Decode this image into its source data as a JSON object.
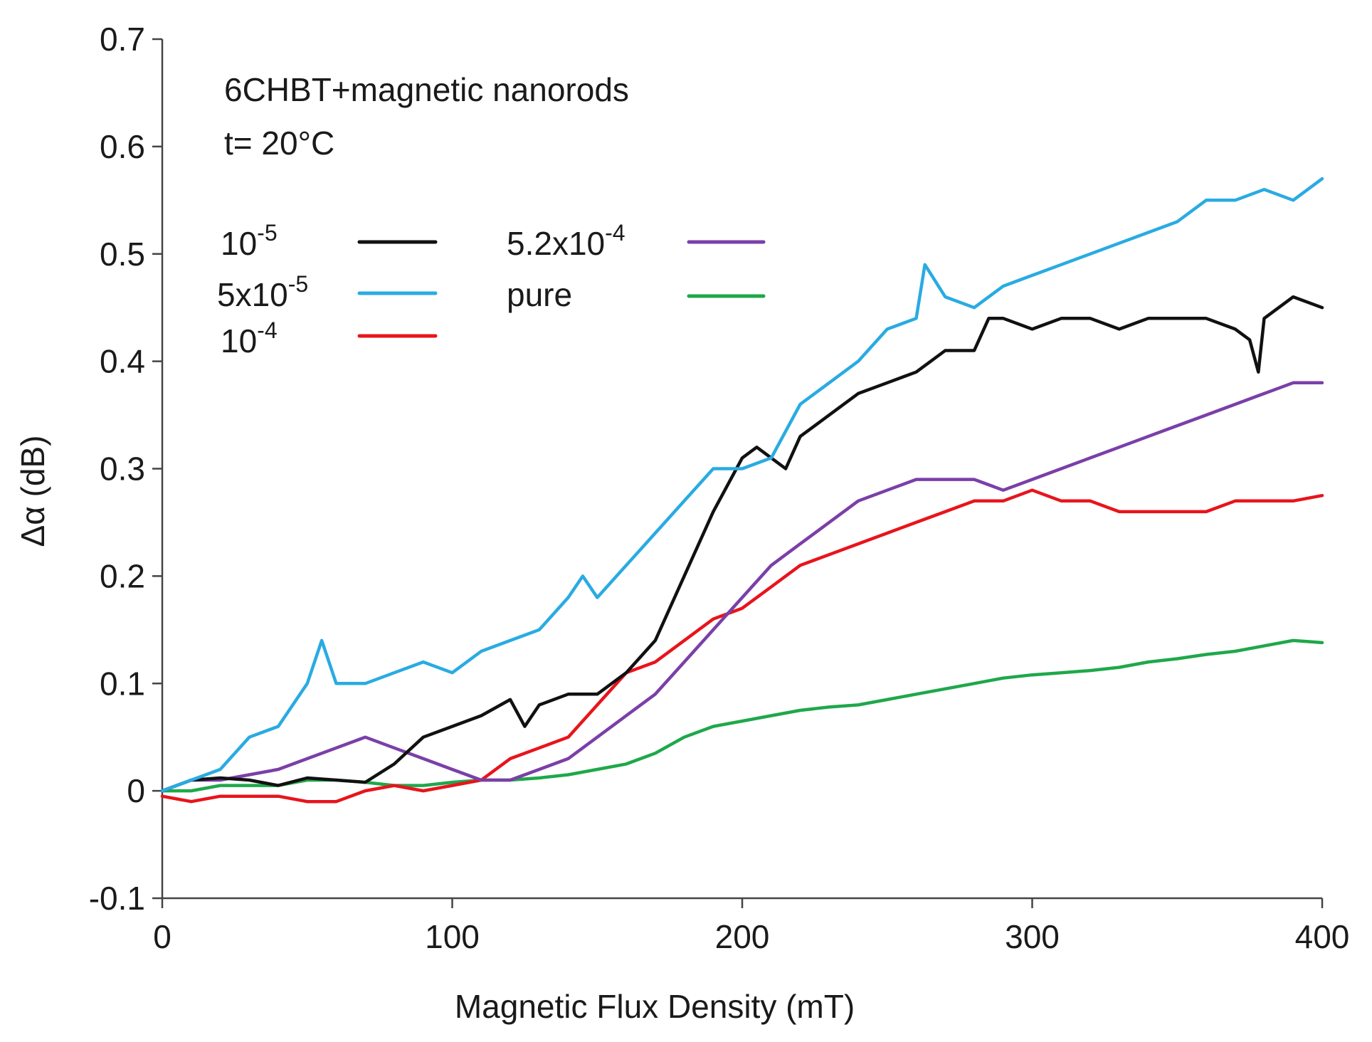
{
  "chart_data": {
    "type": "line",
    "title": "",
    "annotation": [
      "6CHBT+magnetic nanorods",
      "t= 20°C"
    ],
    "xlabel": "Magnetic Flux Density (mT)",
    "ylabel": "Δα (dB)",
    "xlim": [
      0,
      400
    ],
    "ylim": [
      -0.1,
      0.7
    ],
    "xticks": [
      0,
      100,
      200,
      300,
      400
    ],
    "xtick_labels": [
      "0",
      "100",
      "200",
      "300",
      "400"
    ],
    "yticks": [
      -0.1,
      0,
      0.1,
      0.2,
      0.3,
      0.4,
      0.5,
      0.6,
      0.7
    ],
    "ytick_labels": [
      "-0.1",
      "0",
      "0.1",
      "0.2",
      "0.3",
      "0.4",
      "0.5",
      "0.6",
      "0.7"
    ],
    "grid": false,
    "legend_position": "top-left",
    "series": [
      {
        "name": "10-5",
        "label_base": "10",
        "label_exp": "-5",
        "color": "#111111",
        "x": [
          0,
          10,
          20,
          30,
          40,
          50,
          60,
          70,
          80,
          90,
          100,
          110,
          120,
          125,
          130,
          140,
          150,
          160,
          170,
          180,
          190,
          200,
          205,
          210,
          215,
          220,
          230,
          240,
          250,
          260,
          270,
          280,
          285,
          290,
          300,
          310,
          320,
          330,
          340,
          350,
          360,
          370,
          375,
          378,
          380,
          385,
          390,
          400
        ],
        "y": [
          0.0,
          0.01,
          0.012,
          0.01,
          0.005,
          0.012,
          0.01,
          0.008,
          0.025,
          0.05,
          0.06,
          0.07,
          0.085,
          0.06,
          0.08,
          0.09,
          0.09,
          0.11,
          0.14,
          0.2,
          0.26,
          0.31,
          0.32,
          0.31,
          0.3,
          0.33,
          0.35,
          0.37,
          0.38,
          0.39,
          0.41,
          0.41,
          0.44,
          0.44,
          0.43,
          0.44,
          0.44,
          0.43,
          0.44,
          0.44,
          0.44,
          0.43,
          0.42,
          0.39,
          0.44,
          0.45,
          0.46,
          0.45
        ]
      },
      {
        "name": "5x10-5",
        "label_base": "5x10",
        "label_exp": "-5",
        "color": "#29abe2",
        "x": [
          0,
          10,
          20,
          30,
          40,
          50,
          55,
          60,
          70,
          80,
          90,
          100,
          110,
          120,
          130,
          140,
          145,
          150,
          160,
          170,
          180,
          190,
          200,
          210,
          220,
          230,
          240,
          250,
          260,
          263,
          270,
          280,
          290,
          300,
          310,
          320,
          330,
          340,
          350,
          360,
          370,
          380,
          390,
          400
        ],
        "y": [
          0.0,
          0.01,
          0.02,
          0.05,
          0.06,
          0.1,
          0.14,
          0.1,
          0.1,
          0.11,
          0.12,
          0.11,
          0.13,
          0.14,
          0.15,
          0.18,
          0.2,
          0.18,
          0.21,
          0.24,
          0.27,
          0.3,
          0.3,
          0.31,
          0.36,
          0.38,
          0.4,
          0.43,
          0.44,
          0.49,
          0.46,
          0.45,
          0.47,
          0.48,
          0.49,
          0.5,
          0.51,
          0.52,
          0.53,
          0.55,
          0.55,
          0.56,
          0.55,
          0.57
        ]
      },
      {
        "name": "10-4",
        "label_base": "10",
        "label_exp": "-4",
        "color": "#e8141c",
        "x": [
          0,
          10,
          20,
          30,
          40,
          50,
          60,
          70,
          80,
          90,
          100,
          110,
          120,
          130,
          140,
          150,
          160,
          170,
          180,
          190,
          200,
          210,
          220,
          230,
          240,
          250,
          260,
          270,
          280,
          290,
          300,
          310,
          320,
          330,
          340,
          350,
          360,
          370,
          380,
          390,
          400
        ],
        "y": [
          -0.005,
          -0.01,
          -0.005,
          -0.005,
          -0.005,
          -0.01,
          -0.01,
          0.0,
          0.005,
          0.0,
          0.005,
          0.01,
          0.03,
          0.04,
          0.05,
          0.08,
          0.11,
          0.12,
          0.14,
          0.16,
          0.17,
          0.19,
          0.21,
          0.22,
          0.23,
          0.24,
          0.25,
          0.26,
          0.27,
          0.27,
          0.28,
          0.27,
          0.27,
          0.26,
          0.26,
          0.26,
          0.26,
          0.27,
          0.27,
          0.27,
          0.275
        ]
      },
      {
        "name": "5.2x10-4",
        "label_base": "5.2x10",
        "label_exp": "-4",
        "color": "#7b3fa8",
        "x": [
          0,
          10,
          20,
          30,
          40,
          50,
          60,
          70,
          80,
          90,
          100,
          110,
          120,
          130,
          140,
          150,
          160,
          170,
          180,
          190,
          200,
          210,
          220,
          230,
          240,
          250,
          260,
          270,
          280,
          290,
          300,
          310,
          320,
          330,
          340,
          350,
          360,
          370,
          380,
          390,
          400
        ],
        "y": [
          0.0,
          0.01,
          0.01,
          0.015,
          0.02,
          0.03,
          0.04,
          0.05,
          0.04,
          0.03,
          0.02,
          0.01,
          0.01,
          0.02,
          0.03,
          0.05,
          0.07,
          0.09,
          0.12,
          0.15,
          0.18,
          0.21,
          0.23,
          0.25,
          0.27,
          0.28,
          0.29,
          0.29,
          0.29,
          0.28,
          0.29,
          0.3,
          0.31,
          0.32,
          0.33,
          0.34,
          0.35,
          0.36,
          0.37,
          0.38,
          0.38
        ]
      },
      {
        "name": "pure",
        "label_base": "pure",
        "label_exp": "",
        "color": "#1ea84a",
        "x": [
          0,
          10,
          20,
          30,
          40,
          50,
          60,
          70,
          80,
          90,
          100,
          110,
          120,
          130,
          140,
          150,
          160,
          170,
          180,
          190,
          200,
          210,
          220,
          230,
          240,
          250,
          260,
          270,
          280,
          290,
          300,
          310,
          320,
          330,
          340,
          350,
          360,
          370,
          380,
          390,
          400
        ],
        "y": [
          0.0,
          0.0,
          0.005,
          0.005,
          0.005,
          0.01,
          0.01,
          0.008,
          0.005,
          0.005,
          0.008,
          0.01,
          0.01,
          0.012,
          0.015,
          0.02,
          0.025,
          0.035,
          0.05,
          0.06,
          0.065,
          0.07,
          0.075,
          0.078,
          0.08,
          0.085,
          0.09,
          0.095,
          0.1,
          0.105,
          0.108,
          0.11,
          0.112,
          0.115,
          0.12,
          0.123,
          0.127,
          0.13,
          0.135,
          0.14,
          0.138
        ]
      }
    ]
  }
}
